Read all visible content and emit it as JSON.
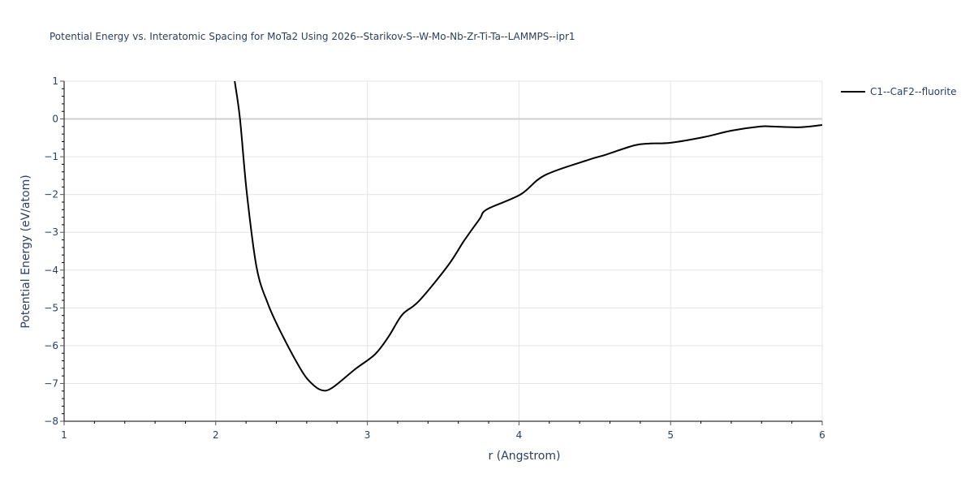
{
  "chart_data": {
    "type": "line",
    "title": "Potential Energy vs. Interatomic Spacing for MoTa2 Using 2026--Starikov-S--W-Mo-Nb-Zr-Ti-Ta--LAMMPS--ipr1",
    "xlabel": "r (Angstrom)",
    "ylabel": "Potential Energy (eV/atom)",
    "xlim": [
      1,
      6
    ],
    "ylim": [
      -8,
      1
    ],
    "xticks": [
      1,
      2,
      3,
      4,
      5,
      6
    ],
    "yticks": [
      1,
      0,
      -1,
      -2,
      -3,
      -4,
      -5,
      -6,
      -7,
      -8
    ],
    "grid": true,
    "legend_position": "top-right outside",
    "series": [
      {
        "name": "C1--CaF2--fluorite",
        "color": "#000000",
        "x": [
          2.125,
          2.16,
          2.205,
          2.27,
          2.345,
          2.43,
          2.56,
          2.63,
          2.7,
          2.77,
          2.92,
          3.05,
          3.14,
          3.23,
          3.34,
          3.53,
          3.64,
          3.74,
          3.79,
          4.01,
          4.17,
          4.46,
          4.57,
          4.76,
          4.86,
          5.0,
          5.22,
          5.4,
          5.59,
          5.67,
          5.85,
          6.0
        ],
        "y": [
          1.0,
          0.0,
          -1.96,
          -3.94,
          -4.9,
          -5.65,
          -6.62,
          -6.99,
          -7.18,
          -7.11,
          -6.62,
          -6.23,
          -5.76,
          -5.18,
          -4.82,
          -3.89,
          -3.21,
          -2.65,
          -2.39,
          -2.0,
          -1.49,
          -1.08,
          -0.95,
          -0.7,
          -0.65,
          -0.63,
          -0.48,
          -0.31,
          -0.2,
          -0.2,
          -0.22,
          -0.16
        ]
      }
    ]
  },
  "legend": {
    "label": "C1--CaF2--fluorite"
  },
  "tick_labels": {
    "x": [
      "1",
      "2",
      "3",
      "4",
      "5",
      "6"
    ],
    "y": [
      "1",
      "0",
      "−1",
      "−2",
      "−3",
      "−4",
      "−5",
      "−6",
      "−7",
      "−8"
    ]
  }
}
